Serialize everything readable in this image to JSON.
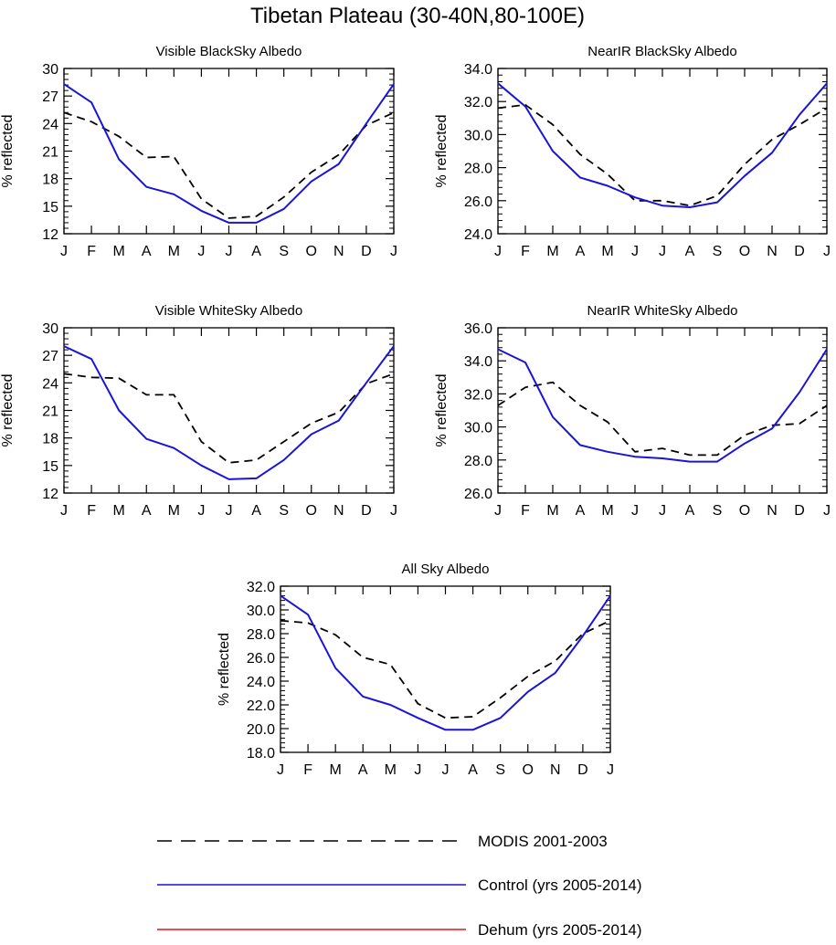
{
  "title": "Tibetan Plateau (30-40N,80-100E)",
  "months": [
    "J",
    "F",
    "M",
    "A",
    "M",
    "J",
    "J",
    "A",
    "S",
    "O",
    "N",
    "D",
    "J"
  ],
  "colors": {
    "modis": "#000000",
    "control": "#1a14d6",
    "dehum": "#e0141e"
  },
  "legend": [
    {
      "key": "modis",
      "label": "MODIS 2001-2003",
      "dash": true
    },
    {
      "key": "control",
      "label": "Control (yrs 2005-2014)",
      "dash": false
    },
    {
      "key": "dehum",
      "label": "Dehum (yrs 2005-2014)",
      "dash": false
    }
  ],
  "chart_data": [
    {
      "type": "line",
      "title": "Visible BlackSky Albedo",
      "ylabel": "% reflected",
      "ylim": [
        12,
        30
      ],
      "yticks": [
        12,
        15,
        18,
        21,
        24,
        27,
        30
      ],
      "tick_decimals": 0,
      "series": [
        {
          "name": "MODIS 2001-2003",
          "key": "modis",
          "values": [
            25.2,
            24.2,
            22.6,
            20.3,
            20.4,
            15.8,
            13.7,
            13.9,
            16.0,
            18.7,
            20.6,
            23.8,
            25.2
          ]
        },
        {
          "name": "Control (yrs 2005-2014)",
          "key": "control",
          "values": [
            28.3,
            26.3,
            20.1,
            17.1,
            16.3,
            14.5,
            13.2,
            13.2,
            14.7,
            17.7,
            19.6,
            24.0,
            28.3
          ]
        }
      ]
    },
    {
      "type": "line",
      "title": "NearIR BlackSky Albedo",
      "ylabel": "% reflected",
      "ylim": [
        24,
        34
      ],
      "yticks": [
        24,
        26,
        28,
        30,
        32,
        34
      ],
      "tick_decimals": 1,
      "series": [
        {
          "name": "MODIS 2001-2003",
          "key": "modis",
          "values": [
            31.6,
            31.8,
            30.6,
            28.8,
            27.6,
            26.0,
            26.0,
            25.7,
            26.3,
            28.2,
            29.7,
            30.6,
            31.6
          ]
        },
        {
          "name": "Control (yrs 2005-2014)",
          "key": "control",
          "values": [
            33.1,
            31.7,
            29.0,
            27.4,
            26.9,
            26.2,
            25.7,
            25.6,
            25.9,
            27.5,
            28.9,
            31.2,
            33.1
          ]
        }
      ]
    },
    {
      "type": "line",
      "title": "Visible WhiteSky Albedo",
      "ylabel": "% reflected",
      "ylim": [
        12,
        30
      ],
      "yticks": [
        12,
        15,
        18,
        21,
        24,
        27,
        30
      ],
      "tick_decimals": 0,
      "series": [
        {
          "name": "MODIS 2001-2003",
          "key": "modis",
          "values": [
            25.0,
            24.6,
            24.5,
            22.7,
            22.7,
            17.6,
            15.3,
            15.6,
            17.6,
            19.6,
            20.8,
            23.9,
            25.0
          ]
        },
        {
          "name": "Control (yrs 2005-2014)",
          "key": "control",
          "values": [
            28.0,
            26.6,
            21.0,
            17.9,
            16.9,
            15.0,
            13.5,
            13.6,
            15.6,
            18.4,
            19.9,
            24.0,
            28.0
          ]
        }
      ]
    },
    {
      "type": "line",
      "title": "NearIR WhiteSky Albedo",
      "ylabel": "% reflected",
      "ylim": [
        26,
        36
      ],
      "yticks": [
        26,
        28,
        30,
        32,
        34,
        36
      ],
      "tick_decimals": 1,
      "series": [
        {
          "name": "MODIS 2001-2003",
          "key": "modis",
          "values": [
            31.3,
            32.4,
            32.7,
            31.3,
            30.3,
            28.5,
            28.7,
            28.3,
            28.3,
            29.5,
            30.1,
            30.2,
            31.3
          ]
        },
        {
          "name": "Control (yrs 2005-2014)",
          "key": "control",
          "values": [
            34.7,
            33.9,
            30.6,
            28.9,
            28.5,
            28.2,
            28.1,
            27.9,
            27.9,
            29.0,
            29.9,
            32.1,
            34.7
          ]
        }
      ]
    },
    {
      "type": "line",
      "title": "All Sky Albedo",
      "ylabel": "% reflected",
      "ylim": [
        18,
        32
      ],
      "yticks": [
        18,
        20,
        22,
        24,
        26,
        28,
        30,
        32
      ],
      "tick_decimals": 1,
      "series": [
        {
          "name": "MODIS 2001-2003",
          "key": "modis",
          "values": [
            29.1,
            28.9,
            27.9,
            26.0,
            25.4,
            22.1,
            20.9,
            21.0,
            22.6,
            24.4,
            25.7,
            28.0,
            29.1
          ]
        },
        {
          "name": "Control (yrs 2005-2014)",
          "key": "control",
          "values": [
            31.2,
            29.6,
            25.1,
            22.7,
            22.0,
            20.9,
            19.9,
            19.9,
            20.9,
            23.1,
            24.7,
            27.8,
            31.2
          ]
        }
      ]
    }
  ]
}
